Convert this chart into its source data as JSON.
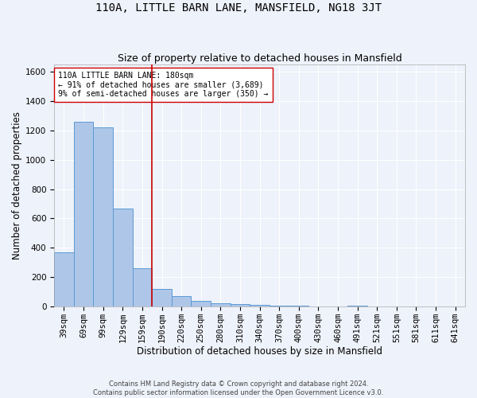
{
  "title": "110A, LITTLE BARN LANE, MANSFIELD, NG18 3JT",
  "subtitle": "Size of property relative to detached houses in Mansfield",
  "xlabel": "Distribution of detached houses by size in Mansfield",
  "ylabel": "Number of detached properties",
  "footnote1": "Contains HM Land Registry data © Crown copyright and database right 2024.",
  "footnote2": "Contains public sector information licensed under the Open Government Licence v3.0.",
  "categories": [
    "39sqm",
    "69sqm",
    "99sqm",
    "129sqm",
    "159sqm",
    "190sqm",
    "220sqm",
    "250sqm",
    "280sqm",
    "310sqm",
    "340sqm",
    "370sqm",
    "400sqm",
    "430sqm",
    "460sqm",
    "491sqm",
    "521sqm",
    "551sqm",
    "581sqm",
    "611sqm",
    "641sqm"
  ],
  "values": [
    370,
    1260,
    1220,
    665,
    260,
    120,
    70,
    37,
    25,
    15,
    10,
    8,
    5,
    0,
    0,
    8,
    0,
    0,
    0,
    0,
    0
  ],
  "bar_color": "#aec6e8",
  "bar_edge_color": "#5b9bd5",
  "vline_x": 4.5,
  "vline_color": "#cc0000",
  "annotation_text": "110A LITTLE BARN LANE: 180sqm\n← 91% of detached houses are smaller (3,689)\n9% of semi-detached houses are larger (350) →",
  "annotation_box_color": "#ffffff",
  "annotation_box_edge": "#cc0000",
  "ylim": [
    0,
    1650
  ],
  "yticks": [
    0,
    200,
    400,
    600,
    800,
    1000,
    1200,
    1400,
    1600
  ],
  "background_color": "#eef2fa",
  "grid_color": "#ffffff",
  "title_fontsize": 10,
  "subtitle_fontsize": 9,
  "axis_label_fontsize": 8.5,
  "tick_fontsize": 7.5,
  "footnote_fontsize": 6,
  "annotation_fontsize": 7
}
